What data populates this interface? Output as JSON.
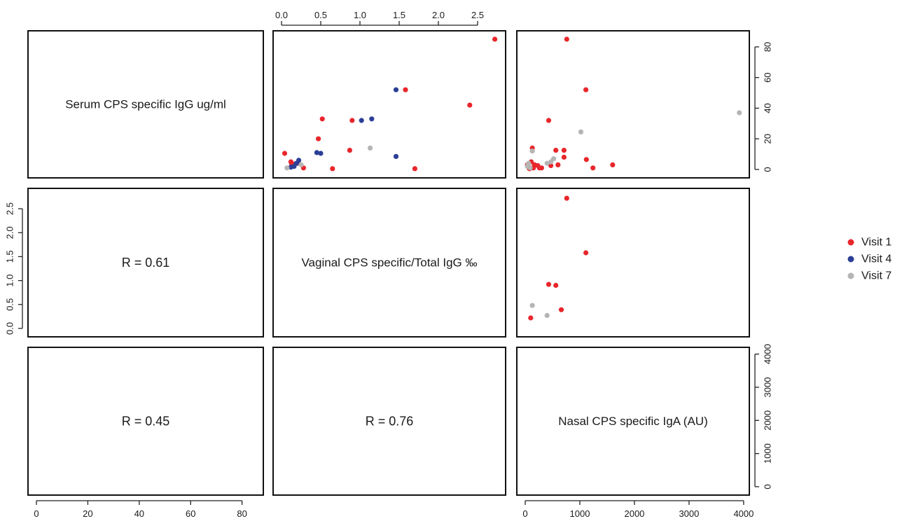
{
  "chart_data": {
    "type": "scatter",
    "variables": [
      {
        "key": "serum",
        "label": "Serum CPS specific IgG ug/ml",
        "range": [
          0,
          85
        ],
        "ticks": [
          0,
          20,
          40,
          60,
          80
        ]
      },
      {
        "key": "vaginal",
        "label": "Vaginal CPS specific/Total IgG ‰",
        "range": [
          0,
          2.75
        ],
        "ticks": [
          0.0,
          0.5,
          1.0,
          1.5,
          2.0,
          2.5
        ]
      },
      {
        "key": "nasal",
        "label": "Nasal CPS specific IgA (AU)",
        "range": [
          0,
          3950
        ],
        "ticks": [
          0,
          1000,
          2000,
          3000,
          4000
        ]
      }
    ],
    "tick_label_sets": {
      "serum": [
        "0",
        "20",
        "40",
        "60",
        "80"
      ],
      "vaginal": [
        "0.0",
        "0.5",
        "1.0",
        "1.5",
        "2.0",
        "2.5"
      ],
      "nasal": [
        "0",
        "1000",
        "2000",
        "3000",
        "4000"
      ]
    },
    "correlations": [
      {
        "row": 1,
        "col": 0,
        "text": "R = 0.61"
      },
      {
        "row": 2,
        "col": 0,
        "text": "R = 0.45"
      },
      {
        "row": 2,
        "col": 1,
        "text": "R = 0.76"
      }
    ],
    "legend": {
      "position": "right",
      "items": [
        {
          "name": "Visit 1",
          "color": "#e8262b"
        },
        {
          "name": "Visit 4",
          "color": "#2b3f96"
        },
        {
          "name": "Visit 7",
          "color": "#b5b5b5"
        }
      ]
    },
    "series": [
      {
        "name": "Visit 1",
        "color": "#e8262b",
        "serum_vs_vaginal": [
          {
            "x": 2.72,
            "y": 85
          },
          {
            "x": 1.58,
            "y": 52
          },
          {
            "x": 2.4,
            "y": 42
          },
          {
            "x": 0.52,
            "y": 33
          },
          {
            "x": 0.9,
            "y": 32
          },
          {
            "x": 0.47,
            "y": 20
          },
          {
            "x": 0.87,
            "y": 12.5
          },
          {
            "x": 0.04,
            "y": 10.5
          },
          {
            "x": 0.12,
            "y": 5
          },
          {
            "x": 0.13,
            "y": 3
          },
          {
            "x": 0.17,
            "y": 3.5
          },
          {
            "x": 0.2,
            "y": 4
          },
          {
            "x": 0.28,
            "y": 1
          },
          {
            "x": 0.65,
            "y": 0.5
          },
          {
            "x": 1.7,
            "y": 0.5
          }
        ],
        "serum_vs_nasal": [
          {
            "x": 760,
            "y": 85
          },
          {
            "x": 1110,
            "y": 52
          },
          {
            "x": 430,
            "y": 32
          },
          {
            "x": 130,
            "y": 14
          },
          {
            "x": 560,
            "y": 12.5
          },
          {
            "x": 710,
            "y": 12.5
          },
          {
            "x": 710,
            "y": 8
          },
          {
            "x": 1120,
            "y": 6.5
          },
          {
            "x": 110,
            "y": 5
          },
          {
            "x": 40,
            "y": 3
          },
          {
            "x": 170,
            "y": 3
          },
          {
            "x": 230,
            "y": 2.5
          },
          {
            "x": 470,
            "y": 2.5
          },
          {
            "x": 600,
            "y": 3
          },
          {
            "x": 1600,
            "y": 3
          },
          {
            "x": 60,
            "y": 1.5
          },
          {
            "x": 100,
            "y": 1
          },
          {
            "x": 150,
            "y": 1
          },
          {
            "x": 260,
            "y": 1
          },
          {
            "x": 300,
            "y": 1
          },
          {
            "x": 1240,
            "y": 1
          },
          {
            "x": 80,
            "y": 0.5
          }
        ],
        "vaginal_vs_nasal": [
          {
            "x": 760,
            "y": 2.72
          },
          {
            "x": 1110,
            "y": 1.58
          },
          {
            "x": 430,
            "y": 0.92
          },
          {
            "x": 560,
            "y": 0.9
          },
          {
            "x": 660,
            "y": 0.39
          },
          {
            "x": 100,
            "y": 0.22
          }
        ]
      },
      {
        "name": "Visit 4",
        "color": "#2b3f96",
        "serum_vs_vaginal": [
          {
            "x": 1.46,
            "y": 52
          },
          {
            "x": 1.15,
            "y": 33
          },
          {
            "x": 1.02,
            "y": 32
          },
          {
            "x": 0.45,
            "y": 11
          },
          {
            "x": 0.5,
            "y": 10.5
          },
          {
            "x": 1.46,
            "y": 8.5
          },
          {
            "x": 0.22,
            "y": 6
          },
          {
            "x": 0.19,
            "y": 4
          },
          {
            "x": 0.16,
            "y": 2
          },
          {
            "x": 0.12,
            "y": 1.5
          }
        ]
      },
      {
        "name": "Visit 7",
        "color": "#b5b5b5",
        "serum_vs_vaginal": [
          {
            "x": 1.13,
            "y": 14
          },
          {
            "x": 0.25,
            "y": 3
          },
          {
            "x": 0.07,
            "y": 1
          }
        ],
        "serum_vs_nasal": [
          {
            "x": 3920,
            "y": 37
          },
          {
            "x": 1020,
            "y": 24.5
          },
          {
            "x": 130,
            "y": 12
          },
          {
            "x": 520,
            "y": 7
          },
          {
            "x": 470,
            "y": 5
          },
          {
            "x": 400,
            "y": 4
          },
          {
            "x": 60,
            "y": 4
          },
          {
            "x": 40,
            "y": 2
          },
          {
            "x": 90,
            "y": 1
          }
        ],
        "vaginal_vs_nasal": [
          {
            "x": 130,
            "y": 0.48
          },
          {
            "x": 400,
            "y": 0.27
          }
        ]
      }
    ]
  }
}
